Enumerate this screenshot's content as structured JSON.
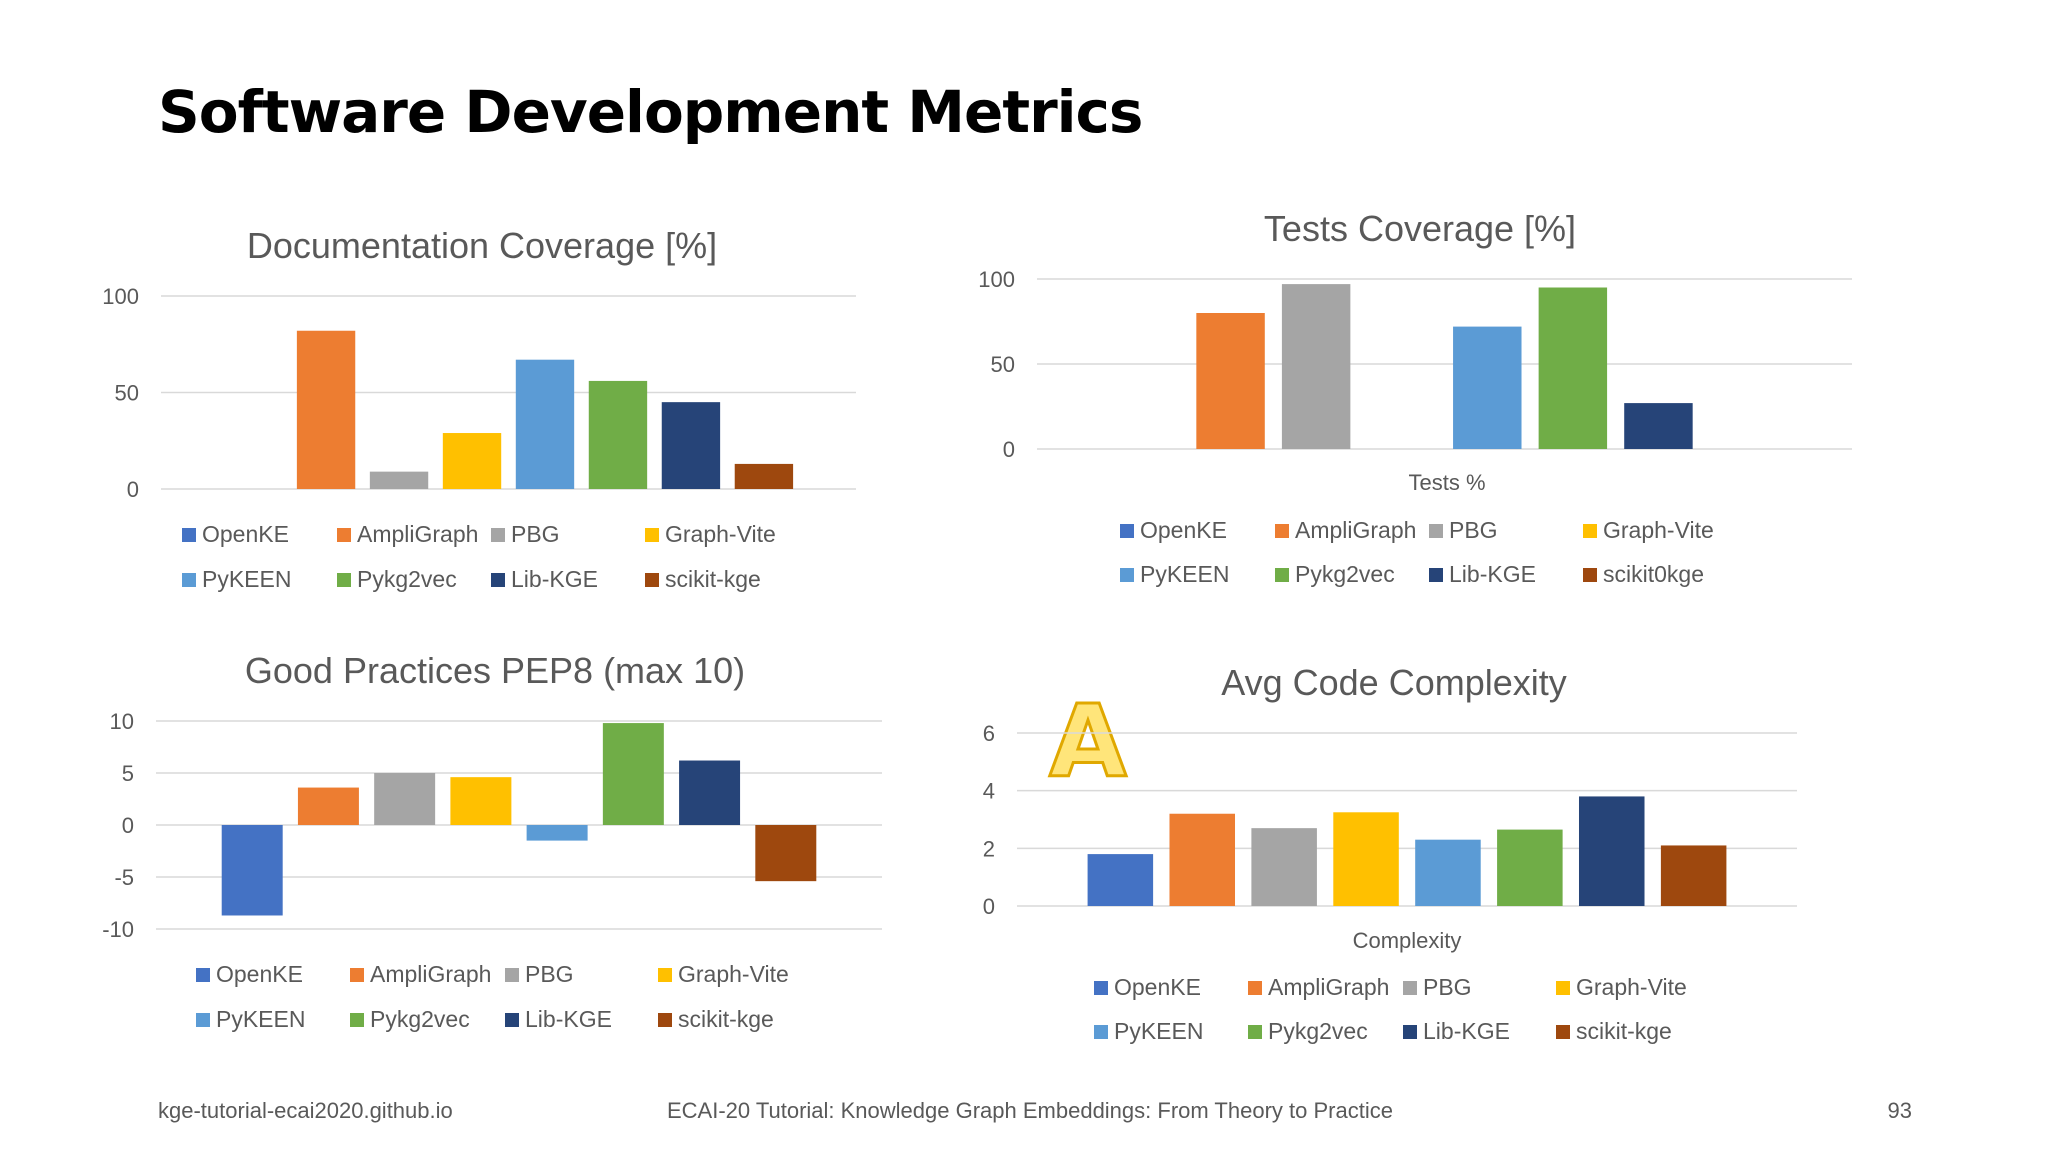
{
  "slide": {
    "title": "Software Development Metrics",
    "footer_left": "kge-tutorial-ecai2020.github.io",
    "footer_center": "ECAI-20 Tutorial: Knowledge Graph Embeddings: From Theory to Practice",
    "page_number": "93",
    "logo_letter": "A"
  },
  "chart_data": [
    {
      "type": "bar",
      "title": "Documentation Coverage [%]",
      "xlabel": "",
      "categories": [
        "OpenKE",
        "AmpliGraph",
        "PBG",
        "Graph-Vite",
        "PyKEEN",
        "Pykg2vec",
        "Lib-KGE",
        "scikit-kge"
      ],
      "values": [
        0,
        82,
        9,
        29,
        67,
        56,
        45,
        13
      ],
      "ylim": [
        0,
        100
      ],
      "yticks": [
        0,
        50,
        100
      ],
      "grid": true,
      "legend": "bottom"
    },
    {
      "type": "bar",
      "title": "Tests Coverage [%]",
      "xlabel": "Tests %",
      "categories": [
        "OpenKE",
        "AmpliGraph",
        "PBG",
        "Graph-Vite",
        "PyKEEN",
        "Pykg2vec",
        "Lib-KGE",
        "scikit0kge"
      ],
      "values": [
        0,
        80,
        97,
        0,
        72,
        95,
        27,
        0
      ],
      "ylim": [
        0,
        100
      ],
      "yticks": [
        0,
        50,
        100
      ],
      "grid": true,
      "legend": "bottom"
    },
    {
      "type": "bar",
      "title": "Good Practices PEP8 (max 10)",
      "xlabel": "",
      "categories": [
        "OpenKE",
        "AmpliGraph",
        "PBG",
        "Graph-Vite",
        "PyKEEN",
        "Pykg2vec",
        "Lib-KGE",
        "scikit-kge"
      ],
      "values": [
        -8.7,
        3.6,
        5,
        4.6,
        -1.5,
        9.8,
        6.2,
        -5.4
      ],
      "ylim": [
        -10,
        10
      ],
      "yticks": [
        -10,
        -5,
        0,
        5,
        10
      ],
      "grid": true,
      "legend": "bottom"
    },
    {
      "type": "bar",
      "title": "Avg Code Complexity",
      "xlabel": "Complexity",
      "categories": [
        "OpenKE",
        "AmpliGraph",
        "PBG",
        "Graph-Vite",
        "PyKEEN",
        "Pykg2vec",
        "Lib-KGE",
        "scikit-kge"
      ],
      "values": [
        1.8,
        3.2,
        2.7,
        3.25,
        2.3,
        2.65,
        3.8,
        2.1
      ],
      "ylim": [
        0,
        6
      ],
      "yticks": [
        0,
        2,
        4,
        6
      ],
      "grid": true,
      "legend": "bottom"
    }
  ],
  "colors": [
    "#4472C4",
    "#ED7D31",
    "#A5A5A5",
    "#FFC000",
    "#5B9BD5",
    "#70AD47",
    "#264478",
    "#9E480E"
  ]
}
